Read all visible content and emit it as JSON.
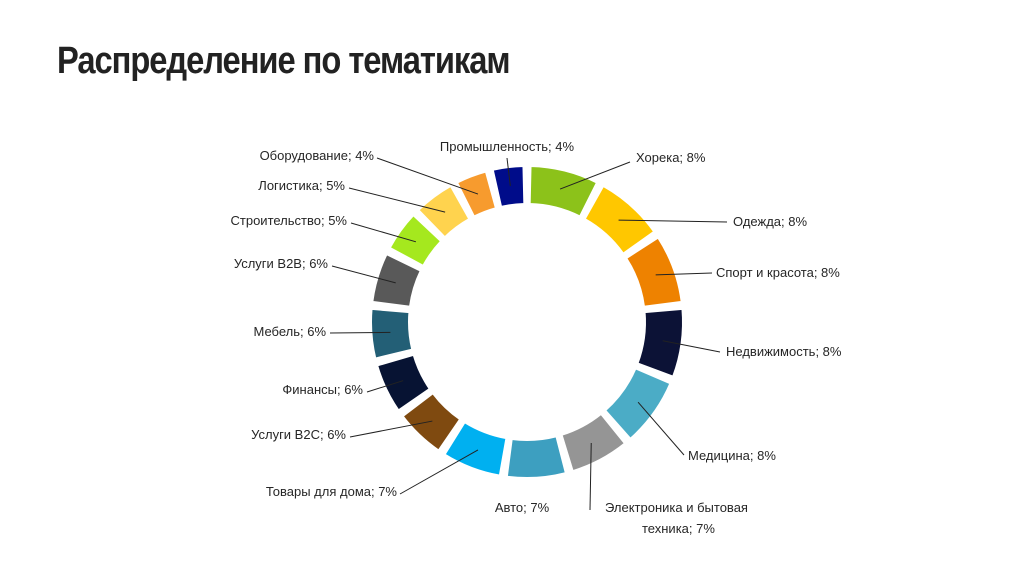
{
  "page": {
    "title": "Распределение по тематикам"
  },
  "chart_data": {
    "type": "pie",
    "variant": "donut",
    "title": "",
    "unit": "%",
    "slices": [
      {
        "label": "Хорека; 8%",
        "category": "Хорека",
        "value": 8,
        "color": "#8CC21A"
      },
      {
        "label": "Одежда; 8%",
        "category": "Одежда",
        "value": 8,
        "color": "#FFC700"
      },
      {
        "label": "Спорт и красота; 8%",
        "category": "Спорт и красота",
        "value": 8,
        "color": "#EE8200"
      },
      {
        "label": "Недвижимость; 8%",
        "category": "Недвижимость",
        "value": 8,
        "color": "#0C1236"
      },
      {
        "label": "Медицина; 8%",
        "category": "Медицина",
        "value": 8,
        "color": "#4BACC6"
      },
      {
        "label": [
          "Электроника и бытовая",
          "техника; 7%"
        ],
        "category": "Электроника и бытовая техника",
        "value": 7,
        "color": "#959595"
      },
      {
        "label": "Авто; 7%",
        "category": "Авто",
        "value": 7,
        "color": "#3D9FC0"
      },
      {
        "label": "Товары для дома; 7%",
        "category": "Товары для дома",
        "value": 7,
        "color": "#00B0F0"
      },
      {
        "label": "Услуги B2C; 6%",
        "category": "Услуги B2C",
        "value": 6,
        "color": "#7F4A10"
      },
      {
        "label": "Финансы; 6%",
        "category": "Финансы",
        "value": 6,
        "color": "#071333"
      },
      {
        "label": "Мебель; 6%",
        "category": "Мебель",
        "value": 6,
        "color": "#235F76"
      },
      {
        "label": "Услуги B2B; 6%",
        "category": "Услуги B2B",
        "value": 6,
        "color": "#595959"
      },
      {
        "label": "Строительство; 5%",
        "category": "Строительство",
        "value": 5,
        "color": "#A5E81E"
      },
      {
        "label": "Логистика; 5%",
        "category": "Логистика",
        "value": 5,
        "color": "#FFD34E"
      },
      {
        "label": "Оборудование; 4%",
        "category": "Оборудование",
        "value": 4,
        "color": "#F79B2E"
      },
      {
        "label": "Промышленность; 4%",
        "category": "Промышленность",
        "value": 4,
        "color": "#000C8A"
      }
    ]
  }
}
